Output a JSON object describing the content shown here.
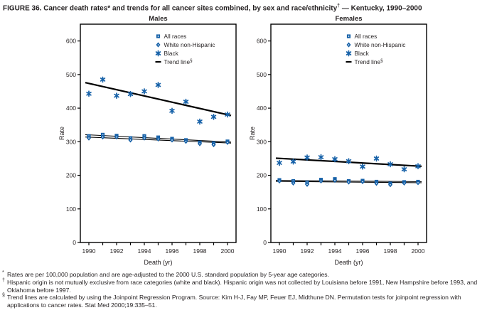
{
  "figure": {
    "title_part1": "FIGURE 36. Cancer death rates* and trends for all cancer sites combined, by sex and race/ethnicity",
    "title_sup": "†",
    "title_part2": " — Kentucky, 1990–2000"
  },
  "style": {
    "marker_color": "#1661a8",
    "trend_color": "#000000",
    "axis_color": "#000000",
    "text_color": "#231f20"
  },
  "legend": {
    "trend_label": "Trend line",
    "trend_sup": "§"
  },
  "chart_data": [
    {
      "type": "scatter",
      "title": "Males",
      "xlabel": "Death (yr)",
      "ylabel": "Rate",
      "x": [
        1990,
        1991,
        1992,
        1993,
        1994,
        1995,
        1996,
        1997,
        1998,
        1999,
        2000
      ],
      "xtick_labels": [
        1990,
        1992,
        1994,
        1996,
        1998,
        2000
      ],
      "yticks": [
        0,
        100,
        200,
        300,
        400,
        500,
        600
      ],
      "ylim": [
        0,
        650
      ],
      "grid": false,
      "legend_position": "inside-upper-middle",
      "series": [
        {
          "name": "All races",
          "marker": "square",
          "values": [
            317,
            321,
            318,
            311,
            317,
            313,
            309,
            305,
            298,
            296,
            301
          ]
        },
        {
          "name": "White non-Hispanic",
          "marker": "diamond",
          "values": [
            311,
            314,
            314,
            305,
            311,
            308,
            305,
            301,
            294,
            291,
            298
          ]
        },
        {
          "name": "Black",
          "marker": "asterisk",
          "values": [
            443,
            485,
            437,
            442,
            450,
            469,
            392,
            419,
            360,
            374,
            381
          ]
        }
      ],
      "trend_lines": [
        {
          "series": "All races",
          "start": 321,
          "end": 299
        },
        {
          "series": "White non-Hispanic",
          "start": 314,
          "end": 296
        },
        {
          "series": "Black",
          "start": 476,
          "end": 378
        }
      ]
    },
    {
      "type": "scatter",
      "title": "Females",
      "xlabel": "Death (yr)",
      "ylabel": "Rate",
      "x": [
        1990,
        1991,
        1992,
        1993,
        1994,
        1995,
        1996,
        1997,
        1998,
        1999,
        2000
      ],
      "xtick_labels": [
        1990,
        1992,
        1994,
        1996,
        1998,
        2000
      ],
      "yticks": [
        0,
        100,
        200,
        300,
        400,
        500,
        600
      ],
      "ylim": [
        0,
        650
      ],
      "grid": false,
      "legend_position": "inside-upper-middle",
      "series": [
        {
          "name": "All races",
          "marker": "square",
          "values": [
            186,
            183,
            179,
            187,
            189,
            183,
            184,
            181,
            176,
            180,
            181
          ]
        },
        {
          "name": "White non-Hispanic",
          "marker": "diamond",
          "values": [
            183,
            177,
            173,
            183,
            185,
            180,
            181,
            176,
            172,
            177,
            178
          ]
        },
        {
          "name": "Black",
          "marker": "asterisk",
          "values": [
            237,
            241,
            253,
            254,
            248,
            242,
            226,
            250,
            233,
            218,
            227
          ]
        }
      ],
      "trend_lines": [
        {
          "series": "All races",
          "start": 185,
          "end": 181
        },
        {
          "series": "White non-Hispanic",
          "start": 182,
          "end": 178
        },
        {
          "series": "Black",
          "start": 251,
          "end": 227
        }
      ]
    }
  ],
  "footnotes": [
    {
      "sup": "*",
      "text": "Rates are per 100,000 population and are age-adjusted to the 2000 U.S. standard population by 5-year age categories."
    },
    {
      "sup": "†",
      "text": "Hispanic origin is not mutually exclusive from race categories (white and black). Hispanic origin was not collected by Louisiana before 1991, New Hampshire before 1993, and Oklahoma before 1997."
    },
    {
      "sup": "§",
      "text": "Trend lines are calculated by using the Joinpoint Regression Program. Source: Kim H-J, Fay MP, Feuer EJ, Midthune DN. Permutation tests for joinpoint regression with applications to cancer rates. Stat Med 2000;19:335–51."
    }
  ]
}
